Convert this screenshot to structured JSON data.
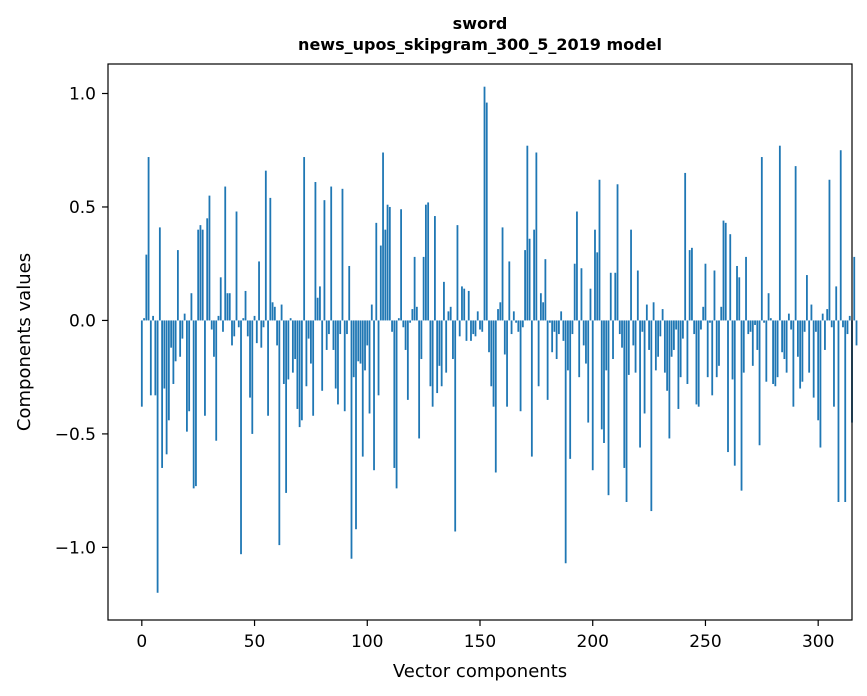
{
  "chart_data": {
    "type": "bar",
    "title": "sword",
    "subtitle": "news_upos_skipgram_300_5_2019 model",
    "xlabel": "Vector components",
    "ylabel": "Components values",
    "xlim": [
      -15,
      315
    ],
    "ylim": [
      -1.32,
      1.13
    ],
    "xticks": [
      0,
      50,
      100,
      150,
      200,
      250,
      300
    ],
    "xtick_labels": [
      "0",
      "50",
      "100",
      "150",
      "200",
      "250",
      "300"
    ],
    "yticks": [
      1.0,
      0.5,
      0.0,
      -0.5,
      -1.0
    ],
    "ytick_labels": [
      "1.0",
      "0.5",
      "0.0",
      "−0.5",
      "−1.0"
    ],
    "bar_color": "#1f77b4",
    "grid": false,
    "values": [
      -0.38,
      0.01,
      0.29,
      0.72,
      -0.33,
      0.02,
      -0.33,
      -1.2,
      0.41,
      -0.65,
      -0.3,
      -0.59,
      -0.44,
      -0.12,
      -0.28,
      -0.18,
      0.31,
      -0.16,
      -0.08,
      0.03,
      -0.49,
      -0.4,
      0.12,
      -0.74,
      -0.73,
      0.4,
      0.42,
      0.4,
      -0.42,
      0.45,
      0.55,
      -0.04,
      -0.16,
      -0.53,
      0.02,
      0.19,
      -0.05,
      0.59,
      0.12,
      0.12,
      -0.11,
      -0.07,
      0.48,
      -0.03,
      -1.03,
      0.01,
      0.13,
      -0.07,
      -0.34,
      -0.5,
      0.02,
      -0.1,
      0.26,
      -0.12,
      -0.03,
      0.66,
      -0.42,
      0.54,
      0.08,
      0.06,
      -0.11,
      -0.99,
      0.07,
      -0.28,
      -0.76,
      -0.26,
      0.01,
      -0.23,
      -0.17,
      -0.39,
      -0.47,
      -0.44,
      0.72,
      -0.29,
      -0.08,
      -0.19,
      -0.42,
      0.61,
      0.1,
      0.15,
      -0.31,
      0.53,
      -0.13,
      -0.06,
      0.59,
      -0.13,
      -0.3,
      -0.37,
      -0.06,
      0.58,
      -0.4,
      -0.06,
      0.24,
      -1.05,
      -0.25,
      -0.92,
      -0.18,
      -0.19,
      -0.6,
      -0.22,
      -0.11,
      -0.41,
      0.07,
      -0.66,
      0.43,
      -0.33,
      0.33,
      0.74,
      0.4,
      0.51,
      0.5,
      -0.05,
      -0.65,
      -0.74,
      0.01,
      0.49,
      -0.03,
      -0.13,
      -0.35,
      -0.01,
      0.05,
      0.28,
      0.06,
      -0.52,
      -0.17,
      0.28,
      0.51,
      0.52,
      -0.29,
      -0.38,
      0.46,
      -0.32,
      -0.2,
      -0.29,
      0.17,
      -0.23,
      0.04,
      0.06,
      -0.17,
      -0.93,
      0.42,
      -0.07,
      0.15,
      0.14,
      -0.09,
      0.13,
      -0.09,
      -0.06,
      -0.07,
      0.04,
      -0.04,
      -0.05,
      1.03,
      0.96,
      -0.14,
      -0.29,
      -0.38,
      -0.67,
      0.05,
      0.08,
      0.41,
      -0.15,
      -0.38,
      0.26,
      -0.06,
      0.04,
      -0.01,
      -0.05,
      -0.4,
      -0.03,
      0.31,
      0.77,
      0.36,
      -0.6,
      0.4,
      0.74,
      -0.29,
      0.12,
      0.08,
      0.27,
      -0.35,
      -0.01,
      -0.14,
      -0.05,
      -0.17,
      -0.06,
      0.04,
      -0.09,
      -1.07,
      -0.22,
      -0.61,
      -0.06,
      0.25,
      0.48,
      -0.25,
      0.23,
      -0.11,
      -0.19,
      -0.45,
      0.14,
      -0.66,
      0.4,
      0.3,
      0.62,
      -0.48,
      -0.54,
      -0.22,
      -0.77,
      0.21,
      -0.17,
      0.21,
      0.6,
      -0.06,
      -0.12,
      -0.65,
      -0.8,
      -0.24,
      0.4,
      -0.11,
      -0.23,
      0.22,
      -0.56,
      -0.05,
      -0.41,
      0.07,
      -0.13,
      -0.84,
      0.08,
      -0.22,
      -0.16,
      -0.07,
      0.05,
      -0.23,
      -0.31,
      -0.52,
      -0.16,
      -0.13,
      -0.04,
      -0.39,
      -0.25,
      -0.08,
      0.65,
      -0.28,
      0.31,
      0.32,
      -0.06,
      -0.37,
      -0.38,
      -0.04,
      0.06,
      0.25,
      -0.25,
      -0.01,
      -0.33,
      0.22,
      -0.25,
      -0.2,
      0.06,
      0.44,
      0.43,
      -0.58,
      0.38,
      -0.26,
      -0.64,
      0.24,
      0.19,
      -0.75,
      -0.23,
      0.28,
      -0.06,
      -0.05,
      -0.2,
      -0.02,
      -0.13,
      -0.55,
      0.72,
      -0.01,
      -0.27,
      0.12,
      0.01,
      -0.28,
      -0.29,
      -0.25,
      0.77,
      -0.14,
      -0.17,
      -0.23,
      0.03,
      -0.04,
      -0.38,
      0.68,
      -0.16,
      -0.3,
      -0.27,
      -0.05,
      0.2,
      -0.23,
      0.07,
      -0.34,
      -0.05,
      -0.44,
      -0.56,
      0.03,
      -0.13,
      0.05,
      0.62,
      -0.03,
      -0.38,
      0.15,
      -0.8,
      0.75,
      -0.03,
      -0.8,
      -0.06,
      0.02,
      -0.45,
      0.28,
      -0.11
    ]
  }
}
